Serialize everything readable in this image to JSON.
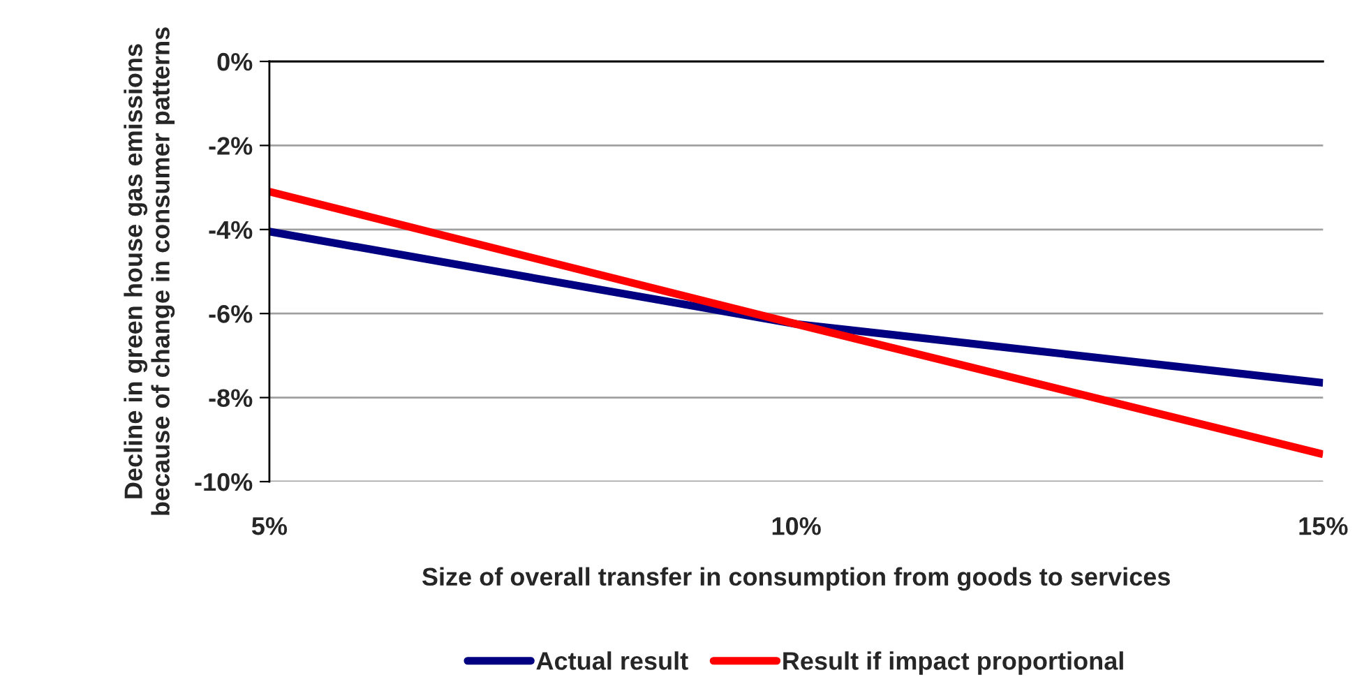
{
  "chart_data": {
    "type": "line",
    "xlabel": "Size of overall transfer in consumption from goods to services",
    "ylabel": "Decline in green house gas emissions because of change in consumer patterns",
    "x": [
      5,
      10,
      15
    ],
    "series": [
      {
        "name": "Actual result",
        "color": "#000080",
        "values": [
          -4.05,
          -6.25,
          -7.65
        ]
      },
      {
        "name": "Result if impact proportional",
        "color": "#ff0000",
        "values": [
          -3.1,
          -6.25,
          -9.35
        ]
      }
    ],
    "xlim": [
      5,
      15
    ],
    "xticks": [
      {
        "value": 5,
        "label": "5%"
      },
      {
        "value": 10,
        "label": "10%"
      },
      {
        "value": 15,
        "label": "15%"
      }
    ],
    "ylim": [
      -10,
      0
    ],
    "yticks": [
      {
        "value": -10,
        "label": "-10%"
      },
      {
        "value": -8,
        "label": "-8%"
      },
      {
        "value": -6,
        "label": "-6%"
      },
      {
        "value": -4,
        "label": "-4%"
      },
      {
        "value": -2,
        "label": "-2%"
      },
      {
        "value": 0,
        "label": "0%"
      }
    ],
    "grid": "y",
    "legend": "bottom",
    "marker": "none",
    "line_style": "solid"
  }
}
